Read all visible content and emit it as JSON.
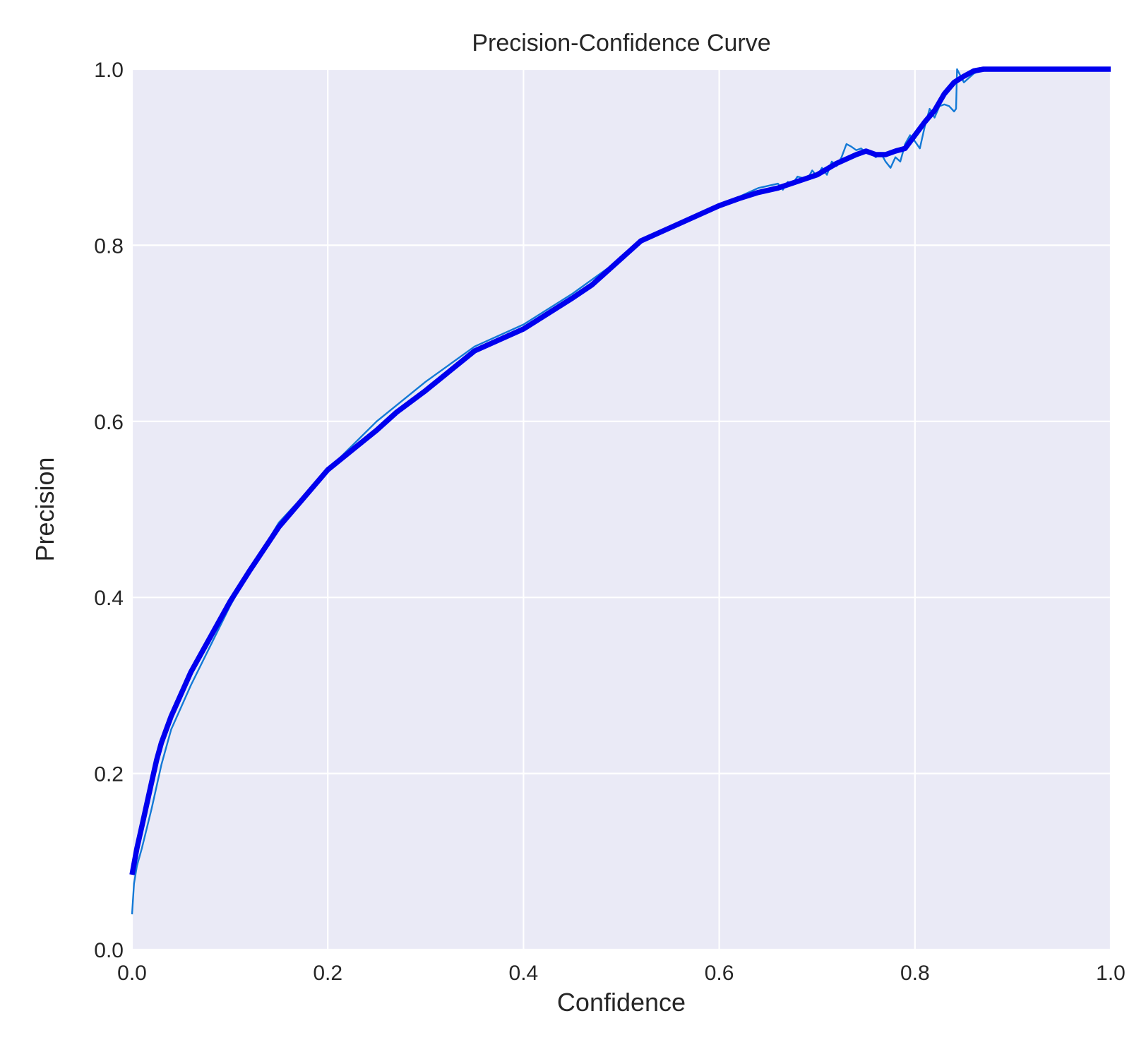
{
  "chart_data": {
    "type": "line",
    "title": "Precision-Confidence Curve",
    "xlabel": "Confidence",
    "ylabel": "Precision",
    "xlim": [
      0.0,
      1.0
    ],
    "ylim": [
      0.0,
      1.0
    ],
    "xticks": [
      "0.0",
      "0.2",
      "0.4",
      "0.6",
      "0.8",
      "1.0"
    ],
    "yticks": [
      "0.0",
      "0.2",
      "0.4",
      "0.6",
      "0.8",
      "1.0"
    ],
    "grid": true,
    "background_color": "#eaeaf6",
    "series": [
      {
        "color": "#1379d6",
        "style": "thin",
        "x": [
          0.0,
          0.002,
          0.005,
          0.01,
          0.02,
          0.03,
          0.04,
          0.06,
          0.08,
          0.1,
          0.12,
          0.15,
          0.2,
          0.25,
          0.3,
          0.35,
          0.4,
          0.45,
          0.5,
          0.52,
          0.55,
          0.6,
          0.62,
          0.64,
          0.66,
          0.665,
          0.67,
          0.675,
          0.68,
          0.69,
          0.695,
          0.7,
          0.705,
          0.71,
          0.715,
          0.72,
          0.725,
          0.73,
          0.735,
          0.74,
          0.745,
          0.75,
          0.755,
          0.76,
          0.765,
          0.77,
          0.775,
          0.78,
          0.785,
          0.79,
          0.795,
          0.8,
          0.805,
          0.81,
          0.815,
          0.82,
          0.825,
          0.83,
          0.835,
          0.84,
          0.842,
          0.843,
          0.85,
          0.86,
          0.87,
          0.9,
          1.0
        ],
        "y": [
          0.04,
          0.075,
          0.095,
          0.115,
          0.16,
          0.21,
          0.25,
          0.3,
          0.345,
          0.39,
          0.43,
          0.485,
          0.545,
          0.6,
          0.645,
          0.685,
          0.71,
          0.745,
          0.785,
          0.805,
          0.82,
          0.845,
          0.855,
          0.865,
          0.87,
          0.863,
          0.872,
          0.87,
          0.878,
          0.875,
          0.885,
          0.878,
          0.888,
          0.88,
          0.895,
          0.89,
          0.9,
          0.915,
          0.912,
          0.908,
          0.91,
          0.905,
          0.905,
          0.9,
          0.905,
          0.895,
          0.888,
          0.9,
          0.895,
          0.915,
          0.925,
          0.918,
          0.91,
          0.935,
          0.955,
          0.945,
          0.958,
          0.96,
          0.958,
          0.952,
          0.955,
          1.0,
          0.985,
          0.995,
          1.0,
          1.0,
          1.0
        ]
      },
      {
        "color": "#0000ee",
        "style": "thick",
        "x": [
          0.0,
          0.005,
          0.01,
          0.015,
          0.02,
          0.025,
          0.03,
          0.04,
          0.05,
          0.06,
          0.07,
          0.08,
          0.1,
          0.12,
          0.15,
          0.2,
          0.25,
          0.27,
          0.3,
          0.35,
          0.38,
          0.4,
          0.45,
          0.47,
          0.5,
          0.52,
          0.55,
          0.6,
          0.62,
          0.64,
          0.66,
          0.7,
          0.72,
          0.74,
          0.75,
          0.76,
          0.77,
          0.78,
          0.79,
          0.8,
          0.81,
          0.82,
          0.83,
          0.84,
          0.85,
          0.86,
          0.87,
          0.9,
          1.0
        ],
        "y": [
          0.085,
          0.115,
          0.14,
          0.165,
          0.19,
          0.215,
          0.235,
          0.265,
          0.29,
          0.315,
          0.335,
          0.355,
          0.395,
          0.43,
          0.48,
          0.545,
          0.59,
          0.61,
          0.635,
          0.68,
          0.695,
          0.705,
          0.74,
          0.755,
          0.785,
          0.805,
          0.82,
          0.845,
          0.853,
          0.86,
          0.865,
          0.88,
          0.893,
          0.903,
          0.907,
          0.903,
          0.903,
          0.907,
          0.91,
          0.925,
          0.94,
          0.953,
          0.972,
          0.985,
          0.992,
          0.998,
          1.0,
          1.0,
          1.0
        ]
      }
    ]
  }
}
